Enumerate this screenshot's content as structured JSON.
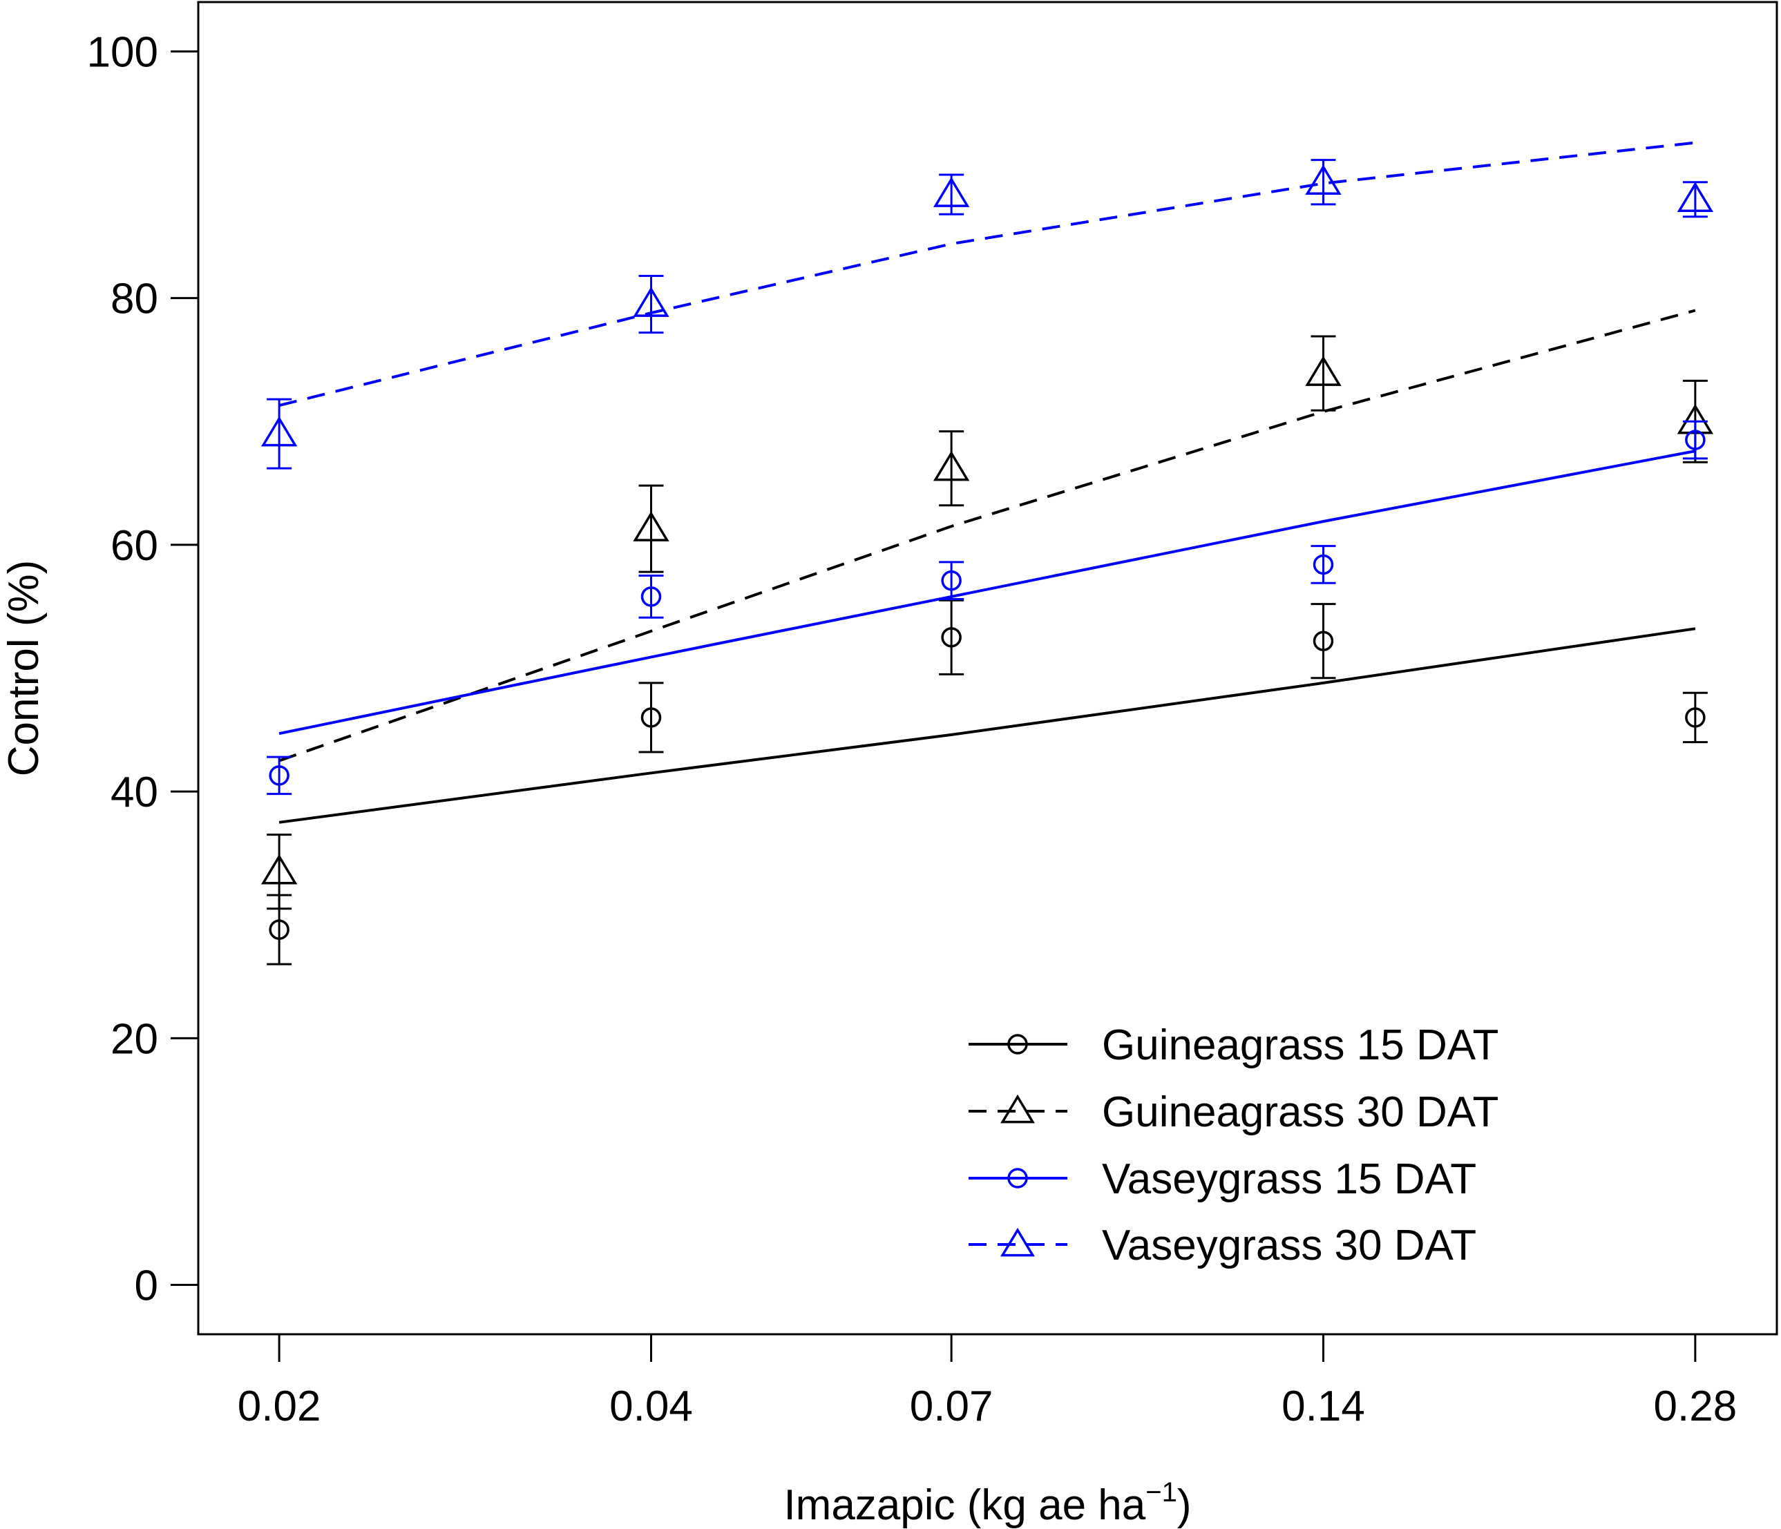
{
  "chart_data": {
    "type": "scatter",
    "title": "",
    "xlabel": "Imazapic (kg ae ha",
    "xlabel_superscript": "−1",
    "xlabel_suffix": ")",
    "ylabel": "Control (%)",
    "x_scale": "log",
    "x_ticks": [
      "0.02",
      "0.04",
      "0.07",
      "0.14",
      "0.28"
    ],
    "x_tick_values": [
      0.02,
      0.04,
      0.07,
      0.14,
      0.28
    ],
    "y_ticks": [
      "0",
      "20",
      "40",
      "60",
      "80",
      "100"
    ],
    "y_tick_values": [
      0,
      20,
      40,
      60,
      80,
      100
    ],
    "ylim": [
      -4,
      104
    ],
    "xlim": [
      0.0172,
      0.326
    ],
    "legend_position": "bottom-right",
    "series": [
      {
        "name": "Guineagrass 15 DAT",
        "color": "#000000",
        "marker": "circle",
        "line_style": "solid",
        "x": [
          0.02,
          0.04,
          0.07,
          0.14,
          0.28
        ],
        "values": [
          28.8,
          46.0,
          52.5,
          52.2,
          46.0
        ],
        "error": [
          2.8,
          2.8,
          3.0,
          3.0,
          2.0
        ],
        "fit": [
          37.5,
          41.5,
          44.6,
          48.8,
          53.2
        ]
      },
      {
        "name": "Guineagrass 30 DAT",
        "color": "#000000",
        "marker": "triangle",
        "line_style": "dashed",
        "x": [
          0.02,
          0.04,
          0.07,
          0.14,
          0.28
        ],
        "values": [
          33.5,
          61.3,
          66.2,
          73.9,
          70.0
        ],
        "error": [
          3.0,
          3.5,
          3.0,
          3.0,
          3.3
        ],
        "fit": [
          42.5,
          53.0,
          61.5,
          70.8,
          79.0
        ]
      },
      {
        "name": "Vaseygrass 15 DAT",
        "color": "#0000ff",
        "marker": "circle",
        "line_style": "solid",
        "x": [
          0.02,
          0.04,
          0.07,
          0.14,
          0.28
        ],
        "values": [
          41.3,
          55.8,
          57.1,
          58.4,
          68.5
        ],
        "error": [
          1.5,
          1.7,
          1.5,
          1.5,
          1.5
        ],
        "fit": [
          44.7,
          50.9,
          55.8,
          61.9,
          67.6
        ]
      },
      {
        "name": "Vaseygrass 30 DAT",
        "color": "#0000ff",
        "marker": "triangle",
        "line_style": "dashed",
        "x": [
          0.02,
          0.04,
          0.07,
          0.14,
          0.28
        ],
        "values": [
          69.0,
          79.5,
          88.4,
          89.4,
          88.0
        ],
        "error": [
          2.8,
          2.3,
          1.6,
          1.8,
          1.4
        ],
        "fit": [
          71.3,
          78.8,
          84.4,
          89.3,
          92.6
        ]
      }
    ]
  }
}
